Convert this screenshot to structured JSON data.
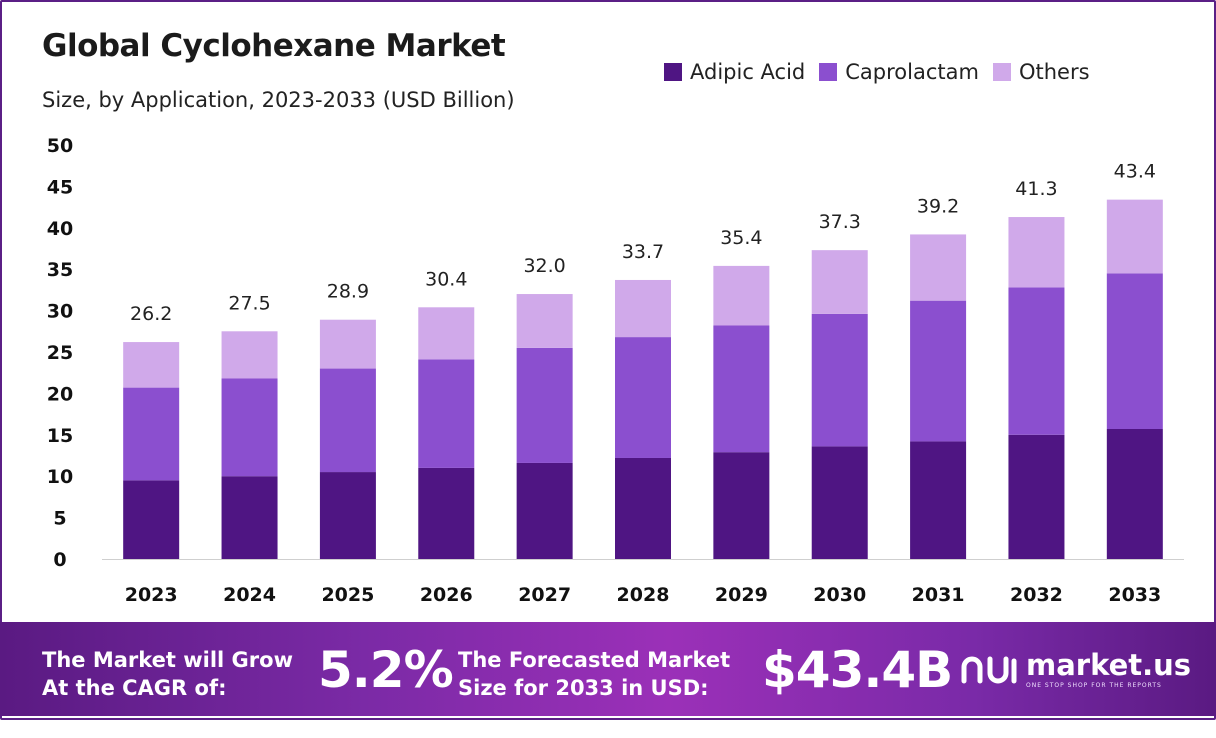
{
  "title": "Global Cyclohexane Market",
  "subtitle": "Size, by Application, 2023-2033 (USD Billion)",
  "legend": [
    {
      "label": "Adipic Acid",
      "color": "#4f1583"
    },
    {
      "label": "Caprolactam",
      "color": "#8b4fcf"
    },
    {
      "label": "Others",
      "color": "#d0a9ea"
    }
  ],
  "chart_data": {
    "type": "bar",
    "stacked": true,
    "categories": [
      "2023",
      "2024",
      "2025",
      "2026",
      "2027",
      "2028",
      "2029",
      "2030",
      "2031",
      "2032",
      "2033"
    ],
    "series": [
      {
        "name": "Adipic Acid",
        "color": "#4f1583",
        "values": [
          9.5,
          10.0,
          10.5,
          11.0,
          11.6,
          12.2,
          12.9,
          13.6,
          14.2,
          15.0,
          15.7
        ]
      },
      {
        "name": "Caprolactam",
        "color": "#8b4fcf",
        "values": [
          11.2,
          11.8,
          12.5,
          13.1,
          13.9,
          14.6,
          15.3,
          16.0,
          17.0,
          17.8,
          18.8
        ]
      },
      {
        "name": "Others",
        "color": "#d0a9ea",
        "values": [
          5.5,
          5.7,
          5.9,
          6.3,
          6.5,
          6.9,
          7.2,
          7.7,
          8.0,
          8.5,
          8.9
        ]
      }
    ],
    "totals": [
      "26.2",
      "27.5",
      "28.9",
      "30.4",
      "32.0",
      "33.7",
      "35.4",
      "37.3",
      "39.2",
      "41.3",
      "43.4"
    ],
    "yticks": [
      "0",
      "5",
      "10",
      "15",
      "20",
      "25",
      "30",
      "35",
      "40",
      "45",
      "50"
    ],
    "ylim": [
      0,
      50
    ],
    "grid": false,
    "legend_position": "top-right"
  },
  "banner": {
    "cagr_text_line1": "The Market will Grow",
    "cagr_text_line2": "At the CAGR of:",
    "cagr_value": "5.2%",
    "forecast_text_line1": "The Forecasted Market",
    "forecast_text_line2": "Size for 2033 in USD:",
    "forecast_value": "$43.4B",
    "brand_name": "market.us",
    "brand_tagline": "ONE STOP SHOP FOR THE REPORTS"
  }
}
